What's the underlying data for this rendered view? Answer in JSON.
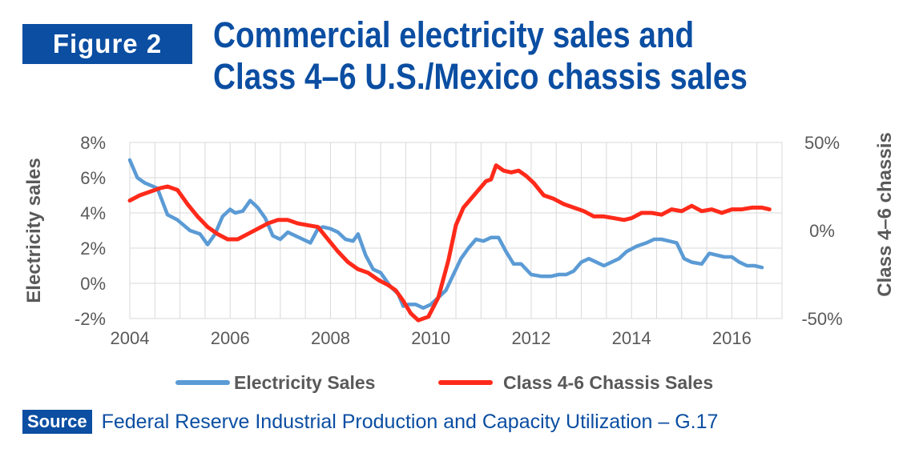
{
  "figure_label": "Figure 2",
  "title_line1": "Commercial electricity sales and",
  "title_line2": "Class 4–6 U.S./Mexico chassis sales",
  "source_label": "Source",
  "source_text": "Federal Reserve Industrial Production and Capacity Utilization – G.17",
  "colors": {
    "brand": "#0b4ea2",
    "electricity": "#5b9bd5",
    "chassis": "#ff2a1a",
    "axis_text": "#595959"
  },
  "chart_data": {
    "type": "line",
    "ylabel": "Electricity sales",
    "y2label": "Class 4–6 chassis",
    "ylim": [
      -0.02,
      0.08
    ],
    "y2lim": [
      -0.5,
      0.5
    ],
    "xlim": [
      2004,
      2017
    ],
    "grid": true,
    "legend_position": "bottom",
    "yticks": [
      "8%",
      "6%",
      "4%",
      "2%",
      "0%",
      "-2%"
    ],
    "y2ticks": [
      "50%",
      "0%",
      "-50%"
    ],
    "xticks": [
      "2004",
      "2006",
      "2008",
      "2010",
      "2012",
      "2014",
      "2016"
    ],
    "series": [
      {
        "name": "Electricity Sales",
        "axis": "left",
        "x": [
          2004.0,
          2004.15,
          2004.3,
          2004.55,
          2004.75,
          2004.95,
          2005.2,
          2005.4,
          2005.55,
          2005.7,
          2005.85,
          2006.0,
          2006.1,
          2006.25,
          2006.4,
          2006.55,
          2006.7,
          2006.85,
          2007.0,
          2007.15,
          2007.3,
          2007.45,
          2007.6,
          2007.75,
          2007.85,
          2008.0,
          2008.15,
          2008.3,
          2008.45,
          2008.55,
          2008.7,
          2008.85,
          2009.0,
          2009.2,
          2009.35,
          2009.45,
          2009.55,
          2009.7,
          2009.85,
          2010.0,
          2010.15,
          2010.3,
          2010.45,
          2010.6,
          2010.75,
          2010.9,
          2011.05,
          2011.2,
          2011.35,
          2011.5,
          2011.65,
          2011.8,
          2012.0,
          2012.2,
          2012.4,
          2012.55,
          2012.7,
          2012.85,
          2013.0,
          2013.15,
          2013.3,
          2013.45,
          2013.6,
          2013.75,
          2013.9,
          2014.1,
          2014.3,
          2014.45,
          2014.6,
          2014.75,
          2014.9,
          2015.05,
          2015.2,
          2015.4,
          2015.55,
          2015.7,
          2015.85,
          2016.0,
          2016.15,
          2016.3,
          2016.45,
          2016.6
        ],
        "values": [
          0.07,
          0.06,
          0.057,
          0.054,
          0.039,
          0.036,
          0.03,
          0.028,
          0.022,
          0.028,
          0.038,
          0.042,
          0.04,
          0.041,
          0.047,
          0.043,
          0.037,
          0.027,
          0.025,
          0.029,
          0.027,
          0.025,
          0.023,
          0.031,
          0.032,
          0.031,
          0.029,
          0.025,
          0.024,
          0.028,
          0.016,
          0.008,
          0.006,
          -0.002,
          -0.006,
          -0.013,
          -0.012,
          -0.012,
          -0.014,
          -0.012,
          -0.008,
          -0.004,
          0.005,
          0.014,
          0.02,
          0.025,
          0.024,
          0.026,
          0.026,
          0.018,
          0.011,
          0.011,
          0.005,
          0.004,
          0.004,
          0.005,
          0.005,
          0.007,
          0.012,
          0.014,
          0.012,
          0.01,
          0.012,
          0.014,
          0.018,
          0.021,
          0.023,
          0.025,
          0.025,
          0.024,
          0.023,
          0.014,
          0.012,
          0.011,
          0.017,
          0.016,
          0.015,
          0.015,
          0.012,
          0.01,
          0.01,
          0.009
        ]
      },
      {
        "name": "Class 4-6 Chassis Sales",
        "axis": "right",
        "x": [
          2004.0,
          2004.2,
          2004.4,
          2004.6,
          2004.75,
          2004.95,
          2005.15,
          2005.35,
          2005.55,
          2005.75,
          2005.95,
          2006.15,
          2006.35,
          2006.55,
          2006.75,
          2006.95,
          2007.15,
          2007.35,
          2007.55,
          2007.75,
          2007.95,
          2008.15,
          2008.35,
          2008.55,
          2008.75,
          2008.95,
          2009.15,
          2009.3,
          2009.45,
          2009.6,
          2009.75,
          2009.95,
          2010.15,
          2010.35,
          2010.5,
          2010.65,
          2010.8,
          2010.95,
          2011.1,
          2011.2,
          2011.3,
          2011.45,
          2011.6,
          2011.75,
          2011.9,
          2012.05,
          2012.25,
          2012.45,
          2012.65,
          2012.85,
          2013.05,
          2013.25,
          2013.45,
          2013.65,
          2013.85,
          2014.0,
          2014.2,
          2014.4,
          2014.6,
          2014.8,
          2015.0,
          2015.2,
          2015.4,
          2015.6,
          2015.8,
          2016.0,
          2016.2,
          2016.4,
          2016.6,
          2016.75
        ],
        "values": [
          0.17,
          0.2,
          0.22,
          0.24,
          0.25,
          0.23,
          0.15,
          0.08,
          0.02,
          -0.02,
          -0.05,
          -0.05,
          -0.02,
          0.01,
          0.04,
          0.06,
          0.06,
          0.04,
          0.03,
          0.02,
          -0.05,
          -0.12,
          -0.18,
          -0.22,
          -0.24,
          -0.28,
          -0.31,
          -0.34,
          -0.4,
          -0.47,
          -0.51,
          -0.49,
          -0.38,
          -0.17,
          0.03,
          0.13,
          0.18,
          0.23,
          0.28,
          0.29,
          0.37,
          0.34,
          0.33,
          0.34,
          0.31,
          0.27,
          0.2,
          0.18,
          0.15,
          0.13,
          0.11,
          0.08,
          0.08,
          0.07,
          0.06,
          0.07,
          0.1,
          0.1,
          0.09,
          0.12,
          0.11,
          0.14,
          0.11,
          0.12,
          0.1,
          0.12,
          0.12,
          0.13,
          0.13,
          0.12
        ]
      }
    ]
  }
}
